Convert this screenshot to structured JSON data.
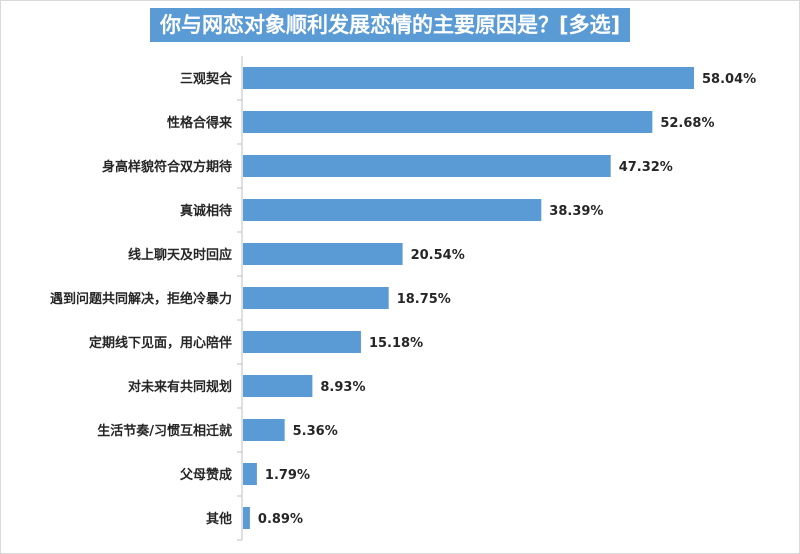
{
  "chart_data": {
    "type": "bar",
    "orientation": "horizontal",
    "title": "你与网恋对象顺利发展恋情的主要原因是？[多选]",
    "categories": [
      "三观契合",
      "性格合得来",
      "身高样貌符合双方期待",
      "真诚相待",
      "线上聊天及时回应",
      "遇到问题共同解决，拒绝冷暴力",
      "定期线下见面，用心陪伴",
      "对未来有共同规划",
      "生活节奏/习惯互相迁就",
      "父母赞成",
      "其他"
    ],
    "values": [
      58.04,
      52.68,
      47.32,
      38.39,
      20.54,
      18.75,
      15.18,
      8.93,
      5.36,
      1.79,
      0.89
    ],
    "value_labels": [
      "58.04%",
      "52.68%",
      "47.32%",
      "38.39%",
      "20.54%",
      "18.75%",
      "15.18%",
      "8.93%",
      "5.36%",
      "1.79%",
      "0.89%"
    ],
    "bar_color": "#5b9bd5",
    "xlim": [
      0,
      58.04
    ],
    "grid": false,
    "legend": "none"
  }
}
